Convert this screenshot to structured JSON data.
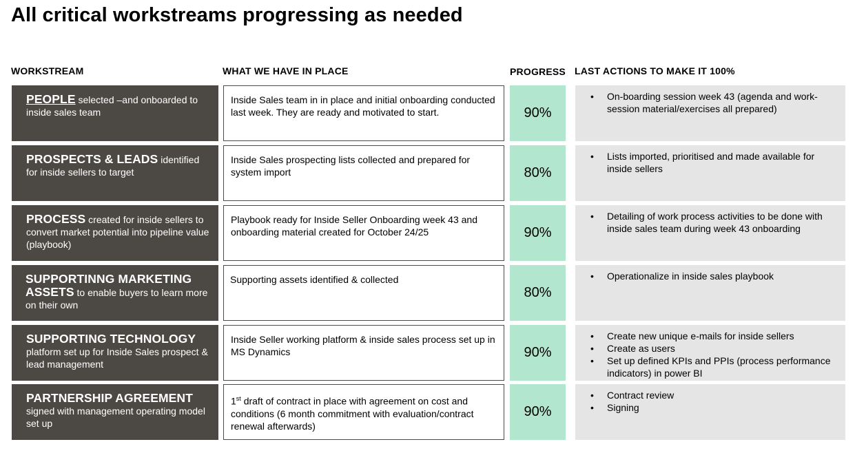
{
  "title": "All critical workstreams progressing as needed",
  "headers": {
    "workstream": "WORKSTREAM",
    "have": "WHAT WE HAVE IN PLACE",
    "progress": "PROGRESS",
    "last": "LAST ACTIONS TO MAKE IT 100%"
  },
  "rows": [
    {
      "name": "PEOPLE",
      "desc": " selected –and onboarded to inside sales team",
      "have": "Inside Sales team in in place and initial onboarding conducted last week. They are ready and motivated to start.",
      "progress": "90%",
      "actions": [
        "On-boarding session week 43 (agenda and work-session material/exercises all prepared)"
      ]
    },
    {
      "name": "PROSPECTS & LEADS",
      "desc": " identified for inside sellers to target",
      "have": "Inside Sales prospecting lists collected and prepared for system import",
      "progress": "80%",
      "actions": [
        "Lists imported, prioritised and made available for inside sellers"
      ]
    },
    {
      "name": "PROCESS",
      "desc": " created for inside sellers to convert market potential into pipeline value (playbook)",
      "have": "Playbook ready for Inside Seller Onboarding week 43 and onboarding material created for October 24/25",
      "progress": "90%",
      "actions": [
        "Detailing of work process activities to be done with inside sales team during week 43 onboarding"
      ]
    },
    {
      "name": "SUPPORTINNG MARKETING ASSETS",
      "desc": " to enable buyers to learn more on their own",
      "have": "Supporting assets identified & collected",
      "progress": "80%",
      "actions": [
        "Operationalize in inside sales playbook"
      ]
    },
    {
      "name": "SUPPORTING TECHNOLOGY",
      "desc": " platform set up for Inside Sales prospect & lead management",
      "have": "Inside Seller working platform & inside sales process set up in MS Dynamics",
      "progress": "90%",
      "actions": [
        "Create new unique e-mails for inside sellers",
        "Create as users",
        "Set up defined KPIs and PPIs (process performance indicators) in power BI"
      ]
    },
    {
      "name": "PARTNERSHIP AGREEMENT",
      "desc": " signed with management operating model set up",
      "have_sup": "st",
      "have_prefix": "1",
      "have": " draft of contract in place with agreement on cost and conditions (6 month commitment with evaluation/contract renewal afterwards)",
      "progress": "90%",
      "actions": [
        "Contract review",
        "Signing"
      ]
    }
  ]
}
